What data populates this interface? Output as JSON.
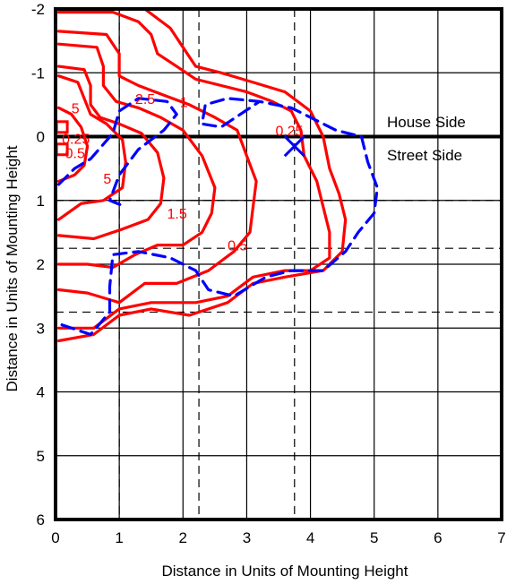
{
  "chart_data": {
    "type": "line",
    "xlabel": "Distance in Units of Mounting Height",
    "ylabel": "Distance in Units of Mounting Height",
    "xlim": [
      0,
      7
    ],
    "ylim": [
      -2,
      6
    ],
    "y_axis_inverted": true,
    "x_ticks": [
      "0",
      "1",
      "2",
      "3",
      "4",
      "5",
      "6",
      "7"
    ],
    "y_ticks": [
      "-2",
      "-1",
      "0",
      "1",
      "2",
      "3",
      "4",
      "5",
      "6"
    ],
    "grid": true,
    "dashed_vertical_lines": [
      1.0,
      2.25,
      3.75
    ],
    "dashed_horizontal_lines": [
      1.0,
      1.75,
      2.75
    ],
    "bold_horizontal_line": 0,
    "marker": {
      "symbol": "x",
      "x": 3.75,
      "y": 0.15
    },
    "annotations": [
      {
        "text": "House Side",
        "x": 5.0,
        "y": -0.2
      },
      {
        "text": "Street Side",
        "x": 5.0,
        "y": 0.3
      }
    ],
    "colors": {
      "contour": "#ff0000",
      "area": "#0000ff",
      "grid": "#000000"
    },
    "series": [
      {
        "label": "0.25",
        "color": "#ff0000",
        "style": "solid",
        "points": [
          [
            0.05,
            -1.95
          ],
          [
            0.9,
            -1.95
          ],
          [
            1.3,
            -1.8
          ],
          [
            1.5,
            -1.6
          ],
          [
            1.6,
            -1.3
          ],
          [
            1.9,
            -1.1
          ],
          [
            2.2,
            -0.9
          ],
          [
            2.6,
            -0.8
          ],
          [
            3.0,
            -0.7
          ],
          [
            3.4,
            -0.55
          ],
          [
            3.7,
            -0.4
          ],
          [
            3.85,
            -0.1
          ],
          [
            3.9,
            0.3
          ],
          [
            4.1,
            0.7
          ],
          [
            4.2,
            1.1
          ],
          [
            4.3,
            1.5
          ],
          [
            4.3,
            1.9
          ],
          [
            4.0,
            2.1
          ],
          [
            3.6,
            2.1
          ],
          [
            3.1,
            2.2
          ],
          [
            2.7,
            2.5
          ],
          [
            2.2,
            2.6
          ],
          [
            1.5,
            2.6
          ],
          [
            1.0,
            2.7
          ],
          [
            0.6,
            3.0
          ],
          [
            0.05,
            3.0
          ]
        ]
      },
      {
        "label": "0.5",
        "color": "#ff0000",
        "style": "solid",
        "points": [
          [
            0.05,
            -1.65
          ],
          [
            0.8,
            -1.6
          ],
          [
            1.0,
            -1.3
          ],
          [
            1.0,
            -0.95
          ],
          [
            1.3,
            -0.8
          ],
          [
            1.7,
            -0.65
          ],
          [
            2.1,
            -0.5
          ],
          [
            2.5,
            -0.3
          ],
          [
            2.85,
            -0.1
          ],
          [
            3.0,
            0.3
          ],
          [
            3.15,
            0.7
          ],
          [
            3.1,
            1.1
          ],
          [
            3.05,
            1.5
          ],
          [
            2.8,
            1.8
          ],
          [
            2.4,
            2.1
          ],
          [
            1.9,
            2.3
          ],
          [
            1.4,
            2.3
          ],
          [
            1.0,
            2.6
          ],
          [
            0.5,
            2.45
          ],
          [
            0.05,
            2.4
          ]
        ]
      },
      {
        "label": "",
        "color": "#ff0000",
        "style": "solid",
        "points": [
          [
            0.05,
            3.2
          ],
          [
            0.6,
            3.1
          ],
          [
            1.0,
            2.8
          ],
          [
            1.5,
            2.7
          ],
          [
            2.1,
            2.8
          ],
          [
            2.7,
            2.6
          ],
          [
            3.1,
            2.3
          ],
          [
            3.6,
            2.2
          ],
          [
            4.2,
            2.1
          ],
          [
            4.5,
            1.8
          ],
          [
            4.55,
            1.3
          ],
          [
            4.45,
            0.9
          ],
          [
            4.3,
            0.5
          ],
          [
            4.2,
            0.0
          ],
          [
            4.0,
            -0.4
          ],
          [
            3.6,
            -0.7
          ],
          [
            3.1,
            -0.85
          ],
          [
            2.6,
            -1.0
          ],
          [
            2.2,
            -1.1
          ],
          [
            2.0,
            -1.4
          ],
          [
            1.8,
            -1.7
          ],
          [
            1.4,
            -2.0
          ]
        ]
      },
      {
        "label": "1",
        "color": "#ff0000",
        "style": "solid",
        "points": [
          [
            0.05,
            -1.45
          ],
          [
            0.65,
            -1.4
          ],
          [
            0.75,
            -1.1
          ],
          [
            0.75,
            -0.8
          ],
          [
            0.95,
            -0.55
          ],
          [
            1.3,
            -0.45
          ],
          [
            1.65,
            -0.3
          ],
          [
            2.0,
            -0.1
          ],
          [
            2.3,
            0.3
          ],
          [
            2.5,
            0.8
          ],
          [
            2.45,
            1.2
          ],
          [
            2.3,
            1.5
          ],
          [
            2.0,
            1.7
          ],
          [
            1.6,
            1.7
          ],
          [
            1.25,
            1.85
          ],
          [
            0.9,
            2.05
          ],
          [
            0.5,
            2.0
          ],
          [
            0.05,
            2.0
          ]
        ]
      },
      {
        "label": "1.5",
        "color": "#ff0000",
        "style": "solid",
        "points": [
          [
            0.05,
            -1.1
          ],
          [
            0.45,
            -1.05
          ],
          [
            0.55,
            -0.8
          ],
          [
            0.55,
            -0.5
          ],
          [
            0.7,
            -0.3
          ],
          [
            1.0,
            -0.2
          ],
          [
            1.35,
            -0.05
          ],
          [
            1.6,
            0.25
          ],
          [
            1.7,
            0.65
          ],
          [
            1.65,
            1.05
          ],
          [
            1.45,
            1.3
          ],
          [
            1.05,
            1.45
          ],
          [
            0.6,
            1.6
          ],
          [
            0.05,
            1.55
          ]
        ]
      },
      {
        "label": "2.5",
        "color": "#ff0000",
        "style": "solid",
        "points": [
          [
            0.05,
            -0.95
          ],
          [
            0.35,
            -0.85
          ],
          [
            0.45,
            -0.6
          ],
          [
            0.55,
            -0.35
          ],
          [
            0.8,
            -0.2
          ],
          [
            1.05,
            0.05
          ],
          [
            1.1,
            0.4
          ],
          [
            1.05,
            0.8
          ],
          [
            0.75,
            1.0
          ],
          [
            0.4,
            1.05
          ],
          [
            0.05,
            1.3
          ]
        ]
      },
      {
        "label": "5",
        "color": "#ff0000",
        "style": "solid",
        "points": [
          [
            0.05,
            -0.45
          ],
          [
            0.25,
            -0.35
          ],
          [
            0.4,
            -0.15
          ],
          [
            0.5,
            0.15
          ],
          [
            0.45,
            0.45
          ],
          [
            0.3,
            0.6
          ],
          [
            0.05,
            0.7
          ]
        ]
      },
      {
        "label": "0.25 area",
        "color": "#0000ff",
        "style": "dashed",
        "points": [
          [
            0.1,
            2.95
          ],
          [
            0.55,
            3.1
          ],
          [
            0.85,
            2.75
          ],
          [
            0.85,
            2.35
          ],
          [
            0.9,
            1.85
          ],
          [
            1.3,
            1.8
          ],
          [
            1.8,
            1.9
          ],
          [
            2.2,
            2.1
          ],
          [
            2.4,
            2.4
          ],
          [
            2.8,
            2.5
          ],
          [
            3.3,
            2.2
          ],
          [
            3.7,
            2.1
          ],
          [
            4.2,
            2.1
          ],
          [
            4.55,
            1.8
          ],
          [
            4.75,
            1.5
          ],
          [
            5.0,
            1.2
          ],
          [
            5.05,
            0.8
          ],
          [
            4.9,
            0.4
          ],
          [
            4.8,
            0.0
          ],
          [
            4.4,
            -0.1
          ],
          [
            4.0,
            -0.3
          ],
          [
            3.7,
            -0.45
          ],
          [
            3.2,
            -0.55
          ],
          [
            2.7,
            -0.6
          ],
          [
            2.35,
            -0.5
          ],
          [
            2.3,
            -0.2
          ],
          [
            2.6,
            -0.15
          ],
          [
            2.9,
            -0.35
          ],
          [
            3.2,
            -0.55
          ]
        ]
      },
      {
        "label": "",
        "color": "#0000ff",
        "style": "dashed",
        "points": [
          [
            0.05,
            0.75
          ],
          [
            0.3,
            0.5
          ],
          [
            0.55,
            0.35
          ],
          [
            0.9,
            -0.05
          ],
          [
            1.0,
            -0.4
          ],
          [
            1.3,
            -0.6
          ],
          [
            1.75,
            -0.55
          ],
          [
            1.9,
            -0.35
          ],
          [
            1.7,
            -0.1
          ],
          [
            1.3,
            0.2
          ],
          [
            1.0,
            0.6
          ],
          [
            0.85,
            1.0
          ],
          [
            1.1,
            1.1
          ]
        ]
      }
    ],
    "labels": [
      {
        "text": "2.5",
        "x": 1.25,
        "y": -0.6
      },
      {
        "text": "1",
        "x": 1.95,
        "y": -0.55
      },
      {
        "text": "5",
        "x": 0.25,
        "y": -0.45
      },
      {
        "text": "0.25",
        "x": 3.45,
        "y": -0.1
      },
      {
        "text": "0.25",
        "x": 0.1,
        "y": 0.03
      },
      {
        "text": "0.5",
        "x": 0.15,
        "y": 0.25
      },
      {
        "text": "5",
        "x": 0.75,
        "y": 0.65
      },
      {
        "text": "1.5",
        "x": 1.75,
        "y": 1.2
      },
      {
        "text": "0.5",
        "x": 2.7,
        "y": 1.7
      }
    ]
  },
  "annotations_text": {
    "house_side": "House Side",
    "street_side": "Street Side"
  }
}
